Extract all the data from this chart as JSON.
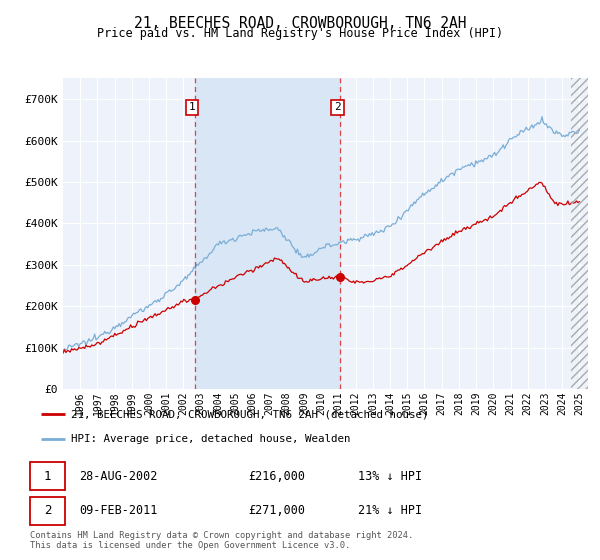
{
  "title": "21, BEECHES ROAD, CROWBOROUGH, TN6 2AH",
  "subtitle": "Price paid vs. HM Land Registry's House Price Index (HPI)",
  "footer_line1": "Contains HM Land Registry data © Crown copyright and database right 2024.",
  "footer_line2": "This data is licensed under the Open Government Licence v3.0.",
  "legend_label_red": "21, BEECHES ROAD, CROWBOROUGH, TN6 2AH (detached house)",
  "legend_label_blue": "HPI: Average price, detached house, Wealden",
  "annotation1_date": "28-AUG-2002",
  "annotation1_price": "£216,000",
  "annotation1_hpi": "13% ↓ HPI",
  "annotation2_date": "09-FEB-2011",
  "annotation2_price": "£271,000",
  "annotation2_hpi": "21% ↓ HPI",
  "sale1_year": 2002.65,
  "sale1_value": 216000,
  "sale2_year": 2011.1,
  "sale2_value": 271000,
  "ylim": [
    0,
    750000
  ],
  "yticks": [
    0,
    100000,
    200000,
    300000,
    400000,
    500000,
    600000,
    700000
  ],
  "ytick_labels": [
    "£0",
    "£100K",
    "£200K",
    "£300K",
    "£400K",
    "£500K",
    "£600K",
    "£700K"
  ],
  "xlim_start": 1995,
  "xlim_end": 2025.5,
  "background_color": "#ffffff",
  "plot_bg_color": "#eef2fa",
  "grid_color": "#ffffff",
  "red_color": "#cc0000",
  "blue_color": "#7aaed6",
  "shading_color": "#d8e6f5",
  "vline_color": "#dd4444",
  "hatch_color": "#aaaaaa"
}
